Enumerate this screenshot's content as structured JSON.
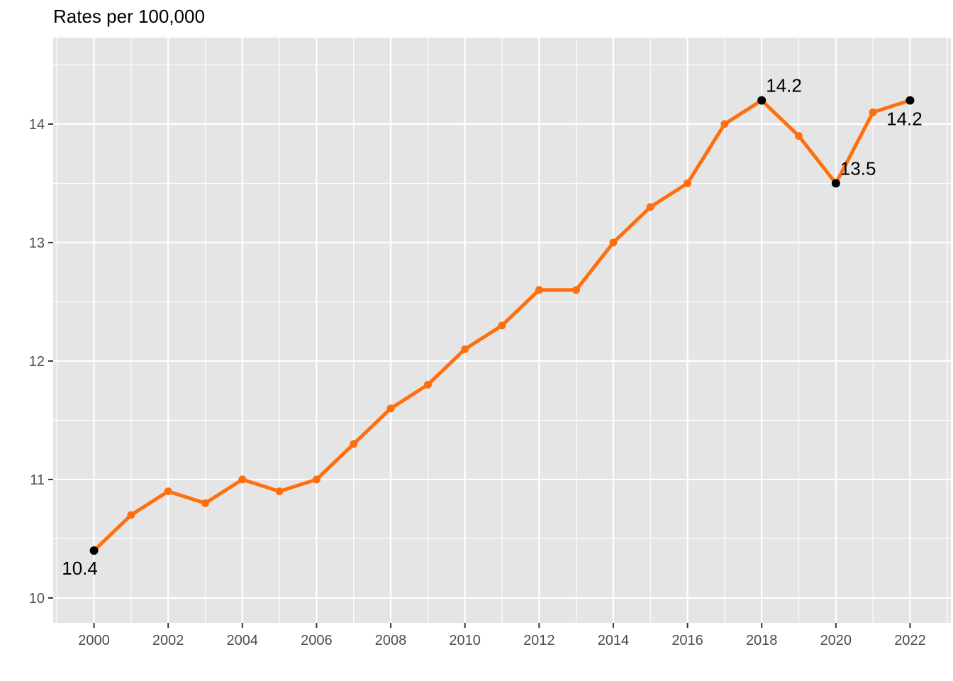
{
  "chart_data": {
    "type": "line",
    "title": "Rates per 100,000",
    "xlabel": "",
    "ylabel": "",
    "x": [
      2000,
      2001,
      2002,
      2003,
      2004,
      2005,
      2006,
      2007,
      2008,
      2009,
      2010,
      2011,
      2012,
      2013,
      2014,
      2015,
      2016,
      2017,
      2018,
      2019,
      2020,
      2021,
      2022
    ],
    "series": [
      {
        "values": [
          10.4,
          10.7,
          10.9,
          10.8,
          11.0,
          10.9,
          11.0,
          11.3,
          11.6,
          11.8,
          12.1,
          12.3,
          12.6,
          12.6,
          13.0,
          13.3,
          13.5,
          14.0,
          14.2,
          13.9,
          13.5,
          14.1,
          14.2
        ],
        "color": "#FF6F0F"
      }
    ],
    "xlim": [
      1998.9,
      2023.1
    ],
    "ylim": [
      9.79,
      14.73
    ],
    "x_ticks": [
      "2000",
      "2002",
      "2004",
      "2006",
      "2008",
      "2010",
      "2012",
      "2014",
      "2016",
      "2018",
      "2020",
      "2022"
    ],
    "y_ticks": [
      "10",
      "11",
      "12",
      "13",
      "14"
    ],
    "highlighted_points": [
      {
        "x": 2000,
        "y": 10.4,
        "label": "10.4",
        "position": "below"
      },
      {
        "x": 2018,
        "y": 14.2,
        "label": "14.2",
        "position": "above-right"
      },
      {
        "x": 2020,
        "y": 13.5,
        "label": "13.5",
        "position": "above-right"
      },
      {
        "x": 2022,
        "y": 14.2,
        "label": "14.2",
        "position": "below-left"
      }
    ],
    "grid": true,
    "panel_background": "#E5E5E5",
    "grid_color": "#FFFFFF",
    "highlight_color": "#000000"
  }
}
